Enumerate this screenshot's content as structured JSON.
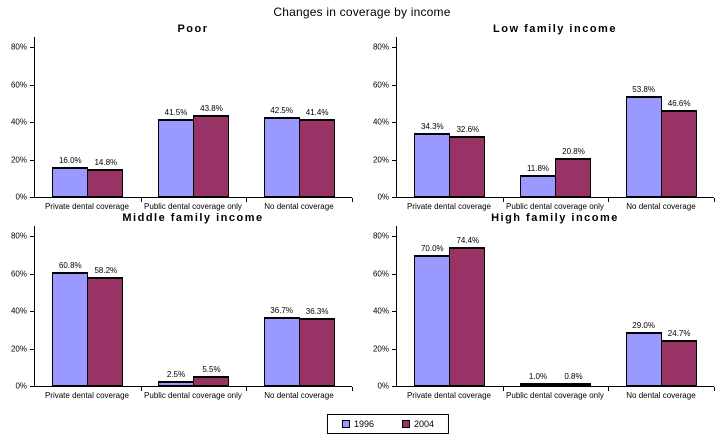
{
  "title": "Changes in coverage by income",
  "colors": {
    "series": [
      "#9999FF",
      "#993366"
    ],
    "axis": "#000000",
    "background": "#FFFFFF"
  },
  "legend": {
    "items": [
      {
        "label": "1996"
      },
      {
        "label": "2004"
      }
    ]
  },
  "chart_data": [
    {
      "type": "bar",
      "title": "Poor",
      "categories": [
        "Private dental coverage",
        "Public dental coverage only",
        "No dental coverage"
      ],
      "series": [
        {
          "name": "1996",
          "values": [
            16.0,
            41.5,
            42.5
          ],
          "labels": [
            "16.0%",
            "41.5%",
            "42.5%"
          ]
        },
        {
          "name": "2004",
          "values": [
            14.8,
            43.8,
            41.4
          ],
          "labels": [
            "14.8%",
            "43.8%",
            "41.4%"
          ]
        }
      ],
      "ylim": [
        0,
        80
      ],
      "yticks": [
        "0%",
        "20%",
        "40%",
        "60%",
        "80%"
      ],
      "grid": false,
      "legend_position": "bottom-shared"
    },
    {
      "type": "bar",
      "title": "Low family income",
      "categories": [
        "Private dental coverage",
        "Public dental coverage only",
        "No dental coverage"
      ],
      "series": [
        {
          "name": "1996",
          "values": [
            34.3,
            11.8,
            53.8
          ],
          "labels": [
            "34.3%",
            "11.8%",
            "53.8%"
          ]
        },
        {
          "name": "2004",
          "values": [
            32.6,
            20.8,
            46.6
          ],
          "labels": [
            "32.6%",
            "20.8%",
            "46.6%"
          ]
        }
      ],
      "ylim": [
        0,
        80
      ],
      "yticks": [
        "0%",
        "20%",
        "40%",
        "60%",
        "80%"
      ],
      "grid": false,
      "legend_position": "bottom-shared"
    },
    {
      "type": "bar",
      "title": "Middle family income",
      "categories": [
        "Private dental coverage",
        "Public dental coverage only",
        "No dental coverage"
      ],
      "series": [
        {
          "name": "1996",
          "values": [
            60.8,
            2.5,
            36.7
          ],
          "labels": [
            "60.8%",
            "2.5%",
            "36.7%"
          ]
        },
        {
          "name": "2004",
          "values": [
            58.2,
            5.5,
            36.3
          ],
          "labels": [
            "58.2%",
            "5.5%",
            "36.3%"
          ]
        }
      ],
      "ylim": [
        0,
        80
      ],
      "yticks": [
        "0%",
        "20%",
        "40%",
        "60%",
        "80%"
      ],
      "grid": false,
      "legend_position": "bottom-shared"
    },
    {
      "type": "bar",
      "title": "High family income",
      "categories": [
        "Private dental coverage",
        "Public dental coverage only",
        "No dental coverage"
      ],
      "series": [
        {
          "name": "1996",
          "values": [
            70.0,
            1.0,
            29.0
          ],
          "labels": [
            "70.0%",
            "1.0%",
            "29.0%"
          ]
        },
        {
          "name": "2004",
          "values": [
            74.4,
            0.8,
            24.7
          ],
          "labels": [
            "74.4%",
            "0.8%",
            "24.7%"
          ]
        }
      ],
      "ylim": [
        0,
        80
      ],
      "yticks": [
        "0%",
        "20%",
        "40%",
        "60%",
        "80%"
      ],
      "grid": false,
      "legend_position": "bottom-shared"
    }
  ]
}
